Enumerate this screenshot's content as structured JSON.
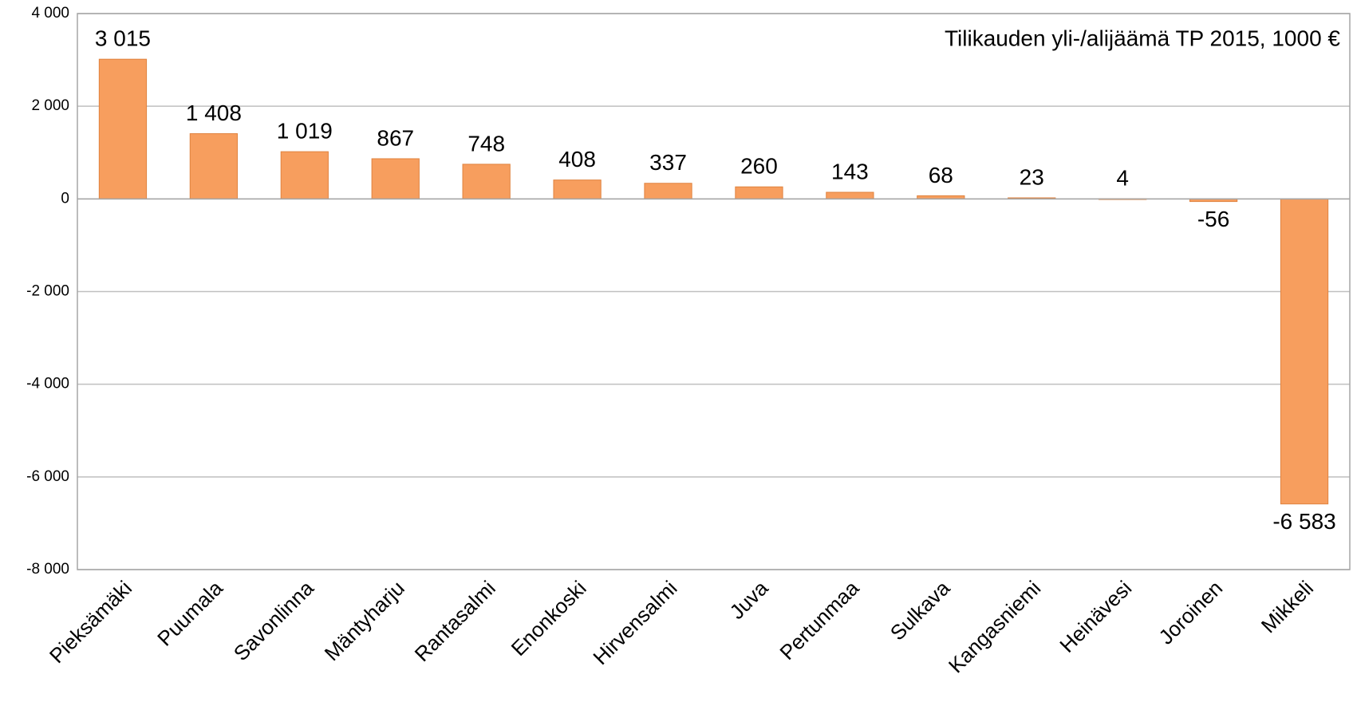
{
  "chart_data": {
    "type": "bar",
    "categories": [
      "Pieksämäki",
      "Puumala",
      "Savonlinna",
      "Mäntyharju",
      "Rantasalmi",
      "Enonkoski",
      "Hirvensalmi",
      "Juva",
      "Pertunmaa",
      "Sulkava",
      "Kangasniemi",
      "Heinävesi",
      "Joroinen",
      "Mikkeli"
    ],
    "series": [
      {
        "name": "Tilikauden yli-/alijäämä TP 2015, 1000 €",
        "color": "#f79e5e",
        "values": [
          3015,
          1408,
          1019,
          867,
          748,
          408,
          337,
          260,
          143,
          68,
          23,
          4,
          -56,
          -6583
        ],
        "value_labels": [
          "3 015",
          "1 408",
          "1 019",
          "867",
          "748",
          "408",
          "337",
          "260",
          "143",
          "68",
          "23",
          "4",
          "-56",
          "-6 583"
        ]
      }
    ],
    "ylim": [
      -8000,
      4000
    ],
    "yticks": [
      {
        "value": -8000,
        "label": "-8 000"
      },
      {
        "value": -6000,
        "label": "-6 000"
      },
      {
        "value": -4000,
        "label": "-4 000"
      },
      {
        "value": -2000,
        "label": "-2 000"
      },
      0,
      {
        "value": 2000,
        "label": "2 000"
      },
      {
        "value": 4000,
        "label": "4 000"
      }
    ],
    "grid": true,
    "legend": "top-right"
  }
}
